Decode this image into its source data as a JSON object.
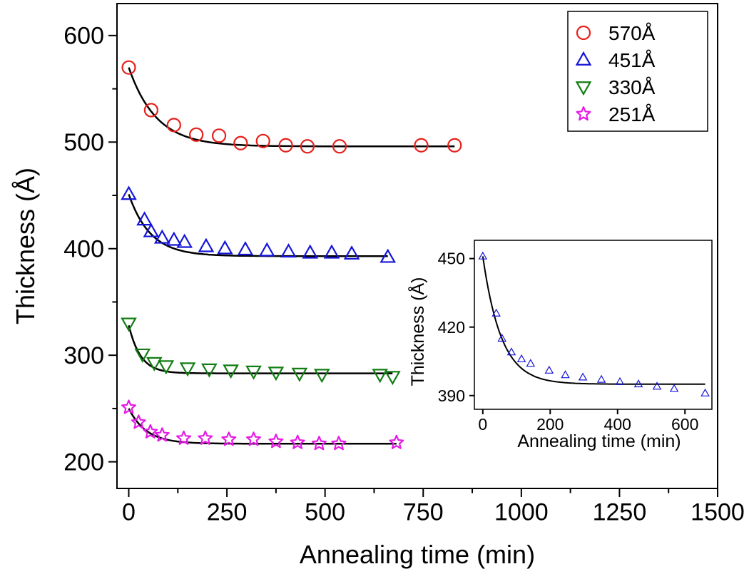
{
  "chart_data": [
    {
      "type": "scatter",
      "title": "",
      "xlabel": "Annealing time (min)",
      "ylabel": "Thickness (Å)",
      "xlim": [
        -30,
        1500
      ],
      "ylim": [
        175,
        630
      ],
      "xticks": [
        0,
        250,
        500,
        750,
        1000,
        1250,
        1500
      ],
      "yticks": [
        200,
        300,
        400,
        500,
        600
      ],
      "x_tick_labels": [
        "0",
        "250",
        "500",
        "750",
        "1000",
        "1250",
        "1500"
      ],
      "y_tick_labels": [
        "200",
        "300",
        "400",
        "500",
        "600"
      ],
      "legend_position": "top-right",
      "grid": false,
      "series": [
        {
          "name": "570Å",
          "marker": "circle",
          "color": "#e8201b",
          "x": [
            0,
            57,
            115,
            172,
            230,
            285,
            342,
            400,
            455,
            537,
            745,
            830
          ],
          "y": [
            570,
            530,
            516,
            507,
            506,
            499,
            501,
            497,
            496,
            496,
            497,
            497
          ],
          "fit": {
            "y0": 496,
            "A": 74,
            "tau": 70,
            "x_end": 830
          }
        },
        {
          "name": "451Å",
          "marker": "triangle-up",
          "color": "#1515d8",
          "x": [
            0,
            40,
            57,
            85,
            115,
            142,
            197,
            245,
            297,
            352,
            407,
            462,
            517,
            568,
            660
          ],
          "y": [
            451,
            427,
            416,
            410,
            408,
            406,
            402,
            400,
            399,
            398,
            397,
            396,
            396,
            395,
            392
          ],
          "fit": {
            "y0": 393,
            "A": 58,
            "tau": 55,
            "x_end": 660
          }
        },
        {
          "name": "330Å",
          "marker": "triangle-down",
          "color": "#127d12",
          "x": [
            0,
            35,
            65,
            95,
            150,
            205,
            260,
            318,
            375,
            435,
            492,
            640,
            672
          ],
          "y": [
            330,
            301,
            293,
            290,
            288,
            287,
            286,
            285,
            284,
            283,
            282,
            282,
            280
          ],
          "fit": {
            "y0": 283,
            "A": 45,
            "tau": 30,
            "x_end": 672
          }
        },
        {
          "name": "251Å",
          "marker": "star",
          "color": "#e41be4",
          "x": [
            0,
            25,
            55,
            85,
            140,
            195,
            255,
            318,
            375,
            430,
            485,
            535,
            682
          ],
          "y": [
            251,
            237,
            228,
            225,
            222,
            222,
            221,
            221,
            219,
            218,
            217,
            217,
            218
          ],
          "fit": {
            "y0": 217,
            "A": 33,
            "tau": 45,
            "x_end": 682
          }
        }
      ]
    },
    {
      "type": "scatter",
      "title": "",
      "inset": true,
      "xlabel": "Annealing time (min)",
      "ylabel": "Thickness (Å)",
      "xlim": [
        -25,
        680
      ],
      "ylim": [
        384,
        458
      ],
      "xticks": [
        0,
        200,
        400,
        600
      ],
      "yticks": [
        390,
        420,
        450
      ],
      "x_tick_labels": [
        "0",
        "200",
        "400",
        "600"
      ],
      "y_tick_labels": [
        "390",
        "420",
        "450"
      ],
      "series": [
        {
          "marker": "triangle-up",
          "color": "#1515d8",
          "x": [
            0,
            40,
            57,
            85,
            115,
            142,
            197,
            245,
            297,
            352,
            407,
            462,
            517,
            568,
            660
          ],
          "y": [
            451,
            426,
            415,
            409,
            406,
            404,
            401,
            399,
            398,
            397,
            396,
            395,
            394,
            393,
            391
          ],
          "fit": {
            "y0": 395,
            "A": 56,
            "tau": 55,
            "x_end": 660
          }
        }
      ]
    }
  ]
}
